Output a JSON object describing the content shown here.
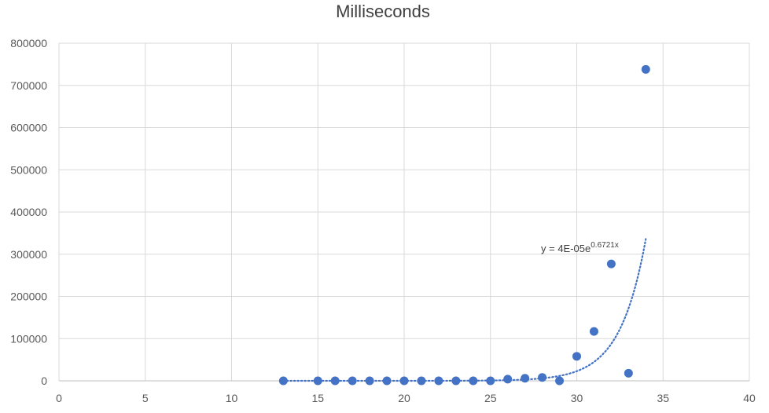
{
  "chart_data": {
    "type": "scatter",
    "title": "Milliseconds",
    "xlabel": "",
    "ylabel": "",
    "xlim": [
      0,
      40
    ],
    "ylim": [
      0,
      800000
    ],
    "x_ticks": [
      0,
      5,
      10,
      15,
      20,
      25,
      30,
      35,
      40
    ],
    "y_ticks": [
      0,
      100000,
      200000,
      300000,
      400000,
      500000,
      600000,
      700000,
      800000
    ],
    "x_tick_labels": [
      "0",
      "5",
      "10",
      "15",
      "20",
      "25",
      "30",
      "35",
      "40"
    ],
    "y_tick_labels": [
      "0",
      "100000",
      "200000",
      "300000",
      "400000",
      "500000",
      "600000",
      "700000",
      "800000"
    ],
    "grid": true,
    "marker_color": "#4472C4",
    "series": [
      {
        "x": [
          13,
          15,
          16,
          17,
          18,
          19,
          20,
          21,
          22,
          23,
          24,
          25,
          26,
          27,
          28,
          29,
          30,
          31,
          32,
          33,
          34
        ],
        "y": [
          0,
          0,
          0,
          0,
          0,
          0,
          0,
          0,
          0,
          0,
          0,
          0,
          4000,
          6000,
          8000,
          0,
          58000,
          117000,
          277000,
          18000,
          738000
        ]
      }
    ],
    "trendline": {
      "type": "exponential",
      "a": 4e-05,
      "b": 0.6721,
      "x_range": [
        13,
        34
      ],
      "style": "dotted",
      "color": "#4472C4",
      "label_prefix": "y = 4E-05e",
      "label_exponent": "0.6721x"
    }
  }
}
